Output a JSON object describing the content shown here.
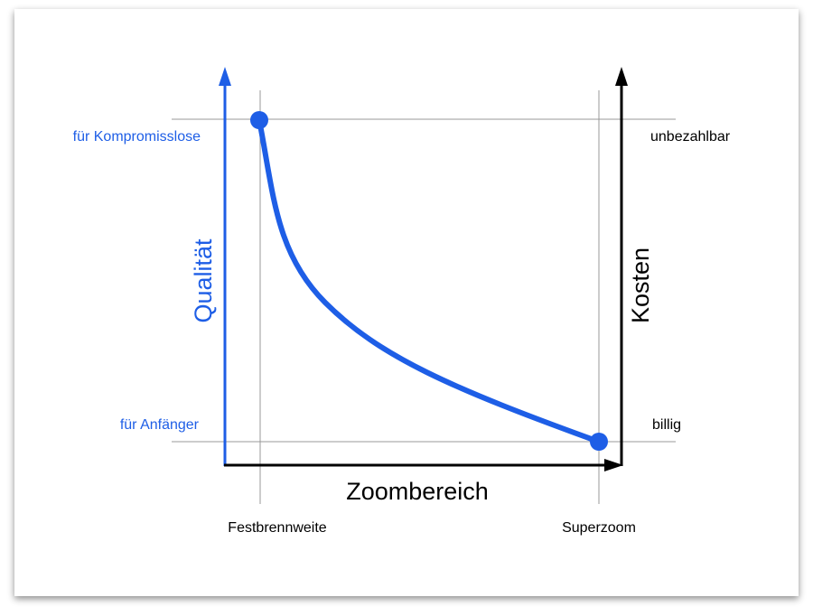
{
  "diagram": {
    "left_axis": {
      "label": "Qualität",
      "top_label": "für Kompromisslose",
      "bottom_label": "für Anfänger"
    },
    "right_axis": {
      "label": "Kosten",
      "top_label": "unbezahlbar",
      "bottom_label": "billig"
    },
    "bottom_axis": {
      "label": "Zoombereich",
      "left_label": "Festbrennweite",
      "right_label": "Superzoom"
    }
  }
}
